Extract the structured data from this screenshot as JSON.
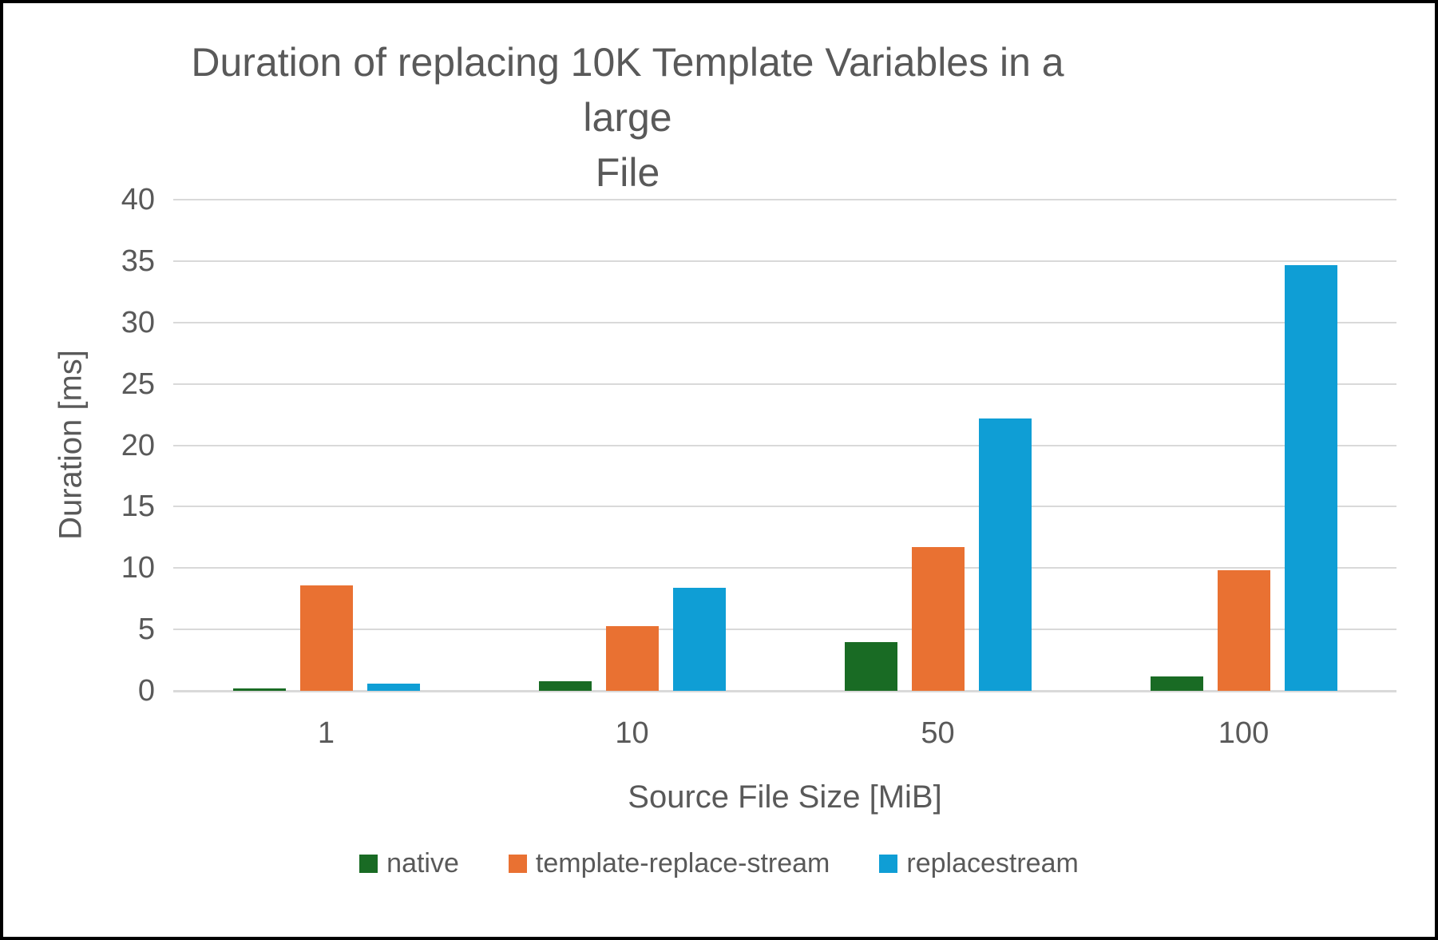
{
  "window": {
    "background_color": "#FFFFFF",
    "border_color": "#000000"
  },
  "chart_data": {
    "type": "bar",
    "title": "Duration of replacing 10K Template Variables in a large File",
    "title_lines": [
      "Duration of replacing 10K Template Variables in a large",
      "File"
    ],
    "xlabel": "Source File Size [MiB]",
    "ylabel": "Duration [ms]",
    "categories": [
      "1",
      "10",
      "50",
      "100"
    ],
    "series": [
      {
        "name": "native",
        "color": "#196B24",
        "values": [
          0.2,
          0.8,
          4.0,
          1.2
        ]
      },
      {
        "name": "template-replace-stream",
        "color": "#E97132",
        "values": [
          8.6,
          5.3,
          11.7,
          9.8
        ]
      },
      {
        "name": "replacestream",
        "color": "#0F9ED5",
        "values": [
          0.6,
          8.4,
          22.2,
          34.7
        ]
      }
    ],
    "ylim": [
      0,
      40
    ],
    "ytick_step": 5,
    "yticks": [
      0,
      5,
      10,
      15,
      20,
      25,
      30,
      35,
      40
    ],
    "grid": true,
    "legend_position": "bottom",
    "gridline_color": "#D9D9D9",
    "text_color": "#595959"
  }
}
